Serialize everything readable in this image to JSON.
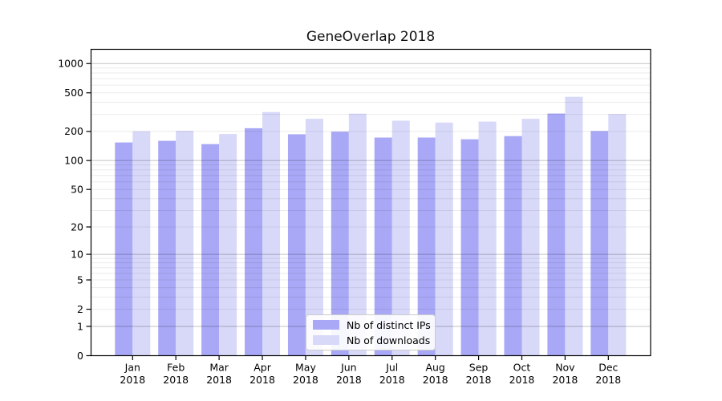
{
  "chart_data": {
    "type": "bar",
    "title": "GeneOverlap 2018",
    "categories": [
      "Jan 2018",
      "Feb 2018",
      "Mar 2018",
      "Apr 2018",
      "May 2018",
      "Jun 2018",
      "Jul 2018",
      "Aug 2018",
      "Sep 2018",
      "Oct 2018",
      "Nov 2018",
      "Dec 2018"
    ],
    "series": [
      {
        "name": "Nb of distinct IPs",
        "color": "#a8a8f6",
        "values": [
          154,
          160,
          148,
          216,
          187,
          199,
          173,
          173,
          166,
          179,
          306,
          202
        ]
      },
      {
        "name": "Nb of downloads",
        "color": "#d8d8f9",
        "values": [
          201,
          203,
          188,
          317,
          270,
          305,
          258,
          247,
          253,
          270,
          455,
          303
        ]
      }
    ],
    "yscale": "log10(value+1)",
    "y_ticks": [
      0,
      1,
      2,
      5,
      10,
      20,
      50,
      100,
      200,
      500,
      1000
    ],
    "ylim": [
      0,
      1370
    ],
    "grid": {
      "major": [
        1,
        10,
        100,
        1000
      ],
      "minor_steps": [
        2,
        3,
        4,
        5,
        6,
        7,
        8,
        9
      ],
      "minor_decades": [
        1,
        10,
        100
      ]
    },
    "legend": {
      "position": "lower-center"
    },
    "colors": {
      "axis": "#000000",
      "major_grid": "rgba(0,0,0,0.24)",
      "minor_grid": "rgba(0,0,0,0.08)",
      "background": "#ffffff"
    }
  }
}
